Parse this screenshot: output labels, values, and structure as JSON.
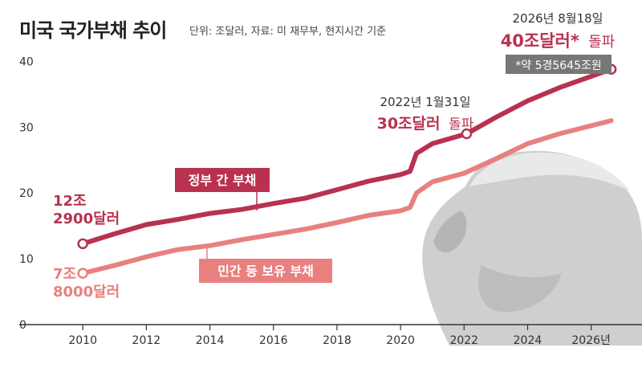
{
  "title": "미국 국가부채 추이",
  "subtitle": "단위: 조달러, 자료: 미 재무부, 현지시간 기준",
  "colors": {
    "government": "#b8324f",
    "private": "#e8807f",
    "axis": "#333333",
    "badge_bg": "#777777"
  },
  "annotations": {
    "start_gov_line1": "12조",
    "start_gov_line2": "2900달러",
    "start_priv_line1": "7조",
    "start_priv_line2": "8000달러",
    "gov_label": "정부 간 부채",
    "priv_label": "민간 등 보유 부채",
    "mark2022_date": "2022년 1월31일",
    "mark2022_value": "30조달러",
    "mark2022_suffix": "돌파",
    "mark2026_date": "2026년 8월18일",
    "mark2026_value": "40조달러*",
    "mark2026_suffix": "돌파",
    "mark2026_note": "*약 5경5645조원"
  },
  "chart_data": {
    "type": "line",
    "xlim": [
      2008,
      2027.6
    ],
    "ylim": [
      0,
      42
    ],
    "x_ticks": [
      2010,
      2012,
      2014,
      2016,
      2018,
      2020,
      2022,
      2024,
      2026
    ],
    "x_tick_labels": [
      "2010",
      "2012",
      "2014",
      "2016",
      "2018",
      "2020",
      "2022",
      "2024",
      "2026년"
    ],
    "y_ticks": [
      0,
      10,
      20,
      30,
      40
    ],
    "y_tick_labels": [
      "0",
      "10",
      "20",
      "30",
      "40"
    ],
    "series": [
      {
        "name": "정부 간 부채",
        "x": [
          2010,
          2011,
          2012,
          2013,
          2014,
          2015,
          2016,
          2017,
          2018,
          2019,
          2020,
          2020.3,
          2020.5,
          2021,
          2022.08,
          2023,
          2024,
          2025,
          2026.63
        ],
        "y": [
          12.29,
          13.8,
          15.2,
          16.0,
          16.9,
          17.5,
          18.4,
          19.2,
          20.5,
          21.8,
          22.8,
          23.3,
          26.0,
          27.5,
          29.0,
          31.5,
          34.0,
          36.0,
          38.8
        ]
      },
      {
        "name": "민간 등 보유 부채",
        "x": [
          2010,
          2011,
          2012,
          2013,
          2014,
          2015,
          2016,
          2017,
          2018,
          2019,
          2020,
          2020.3,
          2020.5,
          2021,
          2022,
          2023,
          2024,
          2025,
          2026.63
        ],
        "y": [
          7.8,
          9.0,
          10.3,
          11.4,
          12.0,
          12.9,
          13.7,
          14.5,
          15.5,
          16.6,
          17.3,
          17.8,
          20.0,
          21.7,
          23.0,
          25.2,
          27.5,
          29.0,
          31.0
        ]
      }
    ],
    "markers": [
      {
        "series": 0,
        "x": 2010,
        "y": 12.29
      },
      {
        "series": 1,
        "x": 2010,
        "y": 7.8
      },
      {
        "series": 0,
        "x": 2022.08,
        "y": 29.0
      },
      {
        "series": 0,
        "x": 2026.63,
        "y": 38.8
      }
    ]
  }
}
